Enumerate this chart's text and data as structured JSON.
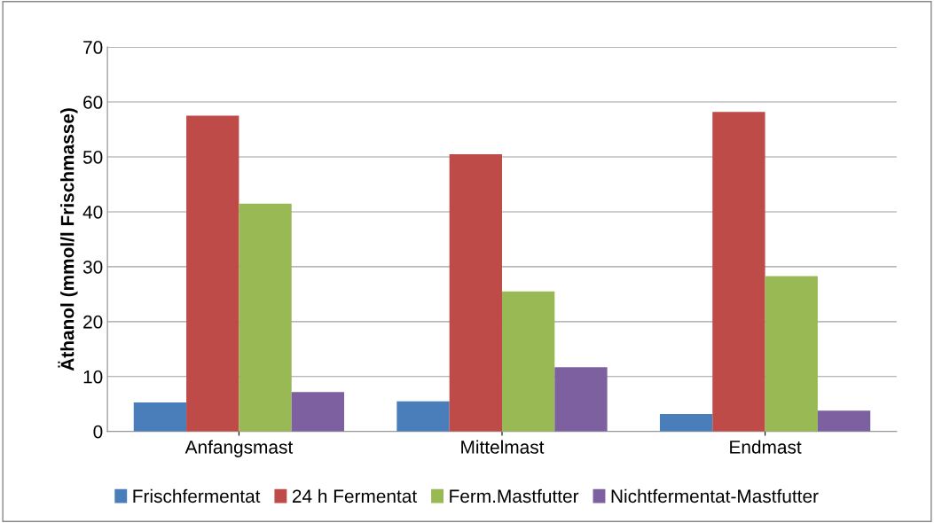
{
  "chart_data": {
    "type": "bar",
    "ylabel": "Äthanol (mmol/l Frischmasse)",
    "categories": [
      "Anfangsmast",
      "Mittelmast",
      "Endmast"
    ],
    "series": [
      {
        "name": "Frischfermentat",
        "color": "#4a7ebb",
        "values": [
          5.3,
          5.5,
          3.2
        ]
      },
      {
        "name": "24 h Fermentat",
        "color": "#be4b48",
        "values": [
          57.5,
          50.5,
          58.2
        ]
      },
      {
        "name": "Ferm.Mastfutter",
        "color": "#98b954",
        "values": [
          41.5,
          25.5,
          28.3
        ]
      },
      {
        "name": "Nichtfermentat-Mastfutter",
        "color": "#7d60a0",
        "values": [
          7.2,
          11.7,
          3.8
        ]
      }
    ],
    "ylim": [
      0,
      70
    ],
    "yticks": [
      0,
      10,
      20,
      30,
      40,
      50,
      60,
      70
    ],
    "grid": "y",
    "legend": "bottom"
  }
}
